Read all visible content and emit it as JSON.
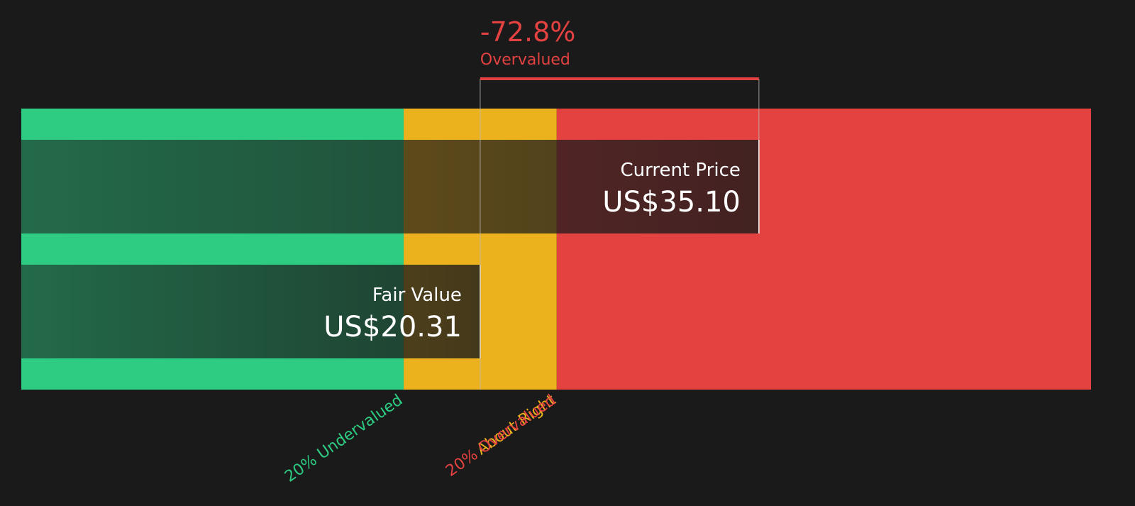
{
  "chart_data": {
    "type": "valuation",
    "xlim": [
      -4.04,
      52.72
    ],
    "zones": [
      {
        "name": "20% Undervalued",
        "color": "#2ecc82",
        "end": 16.25
      },
      {
        "name": "About Right",
        "color": "#ecb21e",
        "end": 24.37
      },
      {
        "name": "20% Overvalued",
        "color": "#e44141"
      }
    ],
    "series": [
      {
        "name": "Current Price",
        "value": 35.1,
        "value_label": "US$35.10"
      },
      {
        "name": "Fair Value",
        "value": 20.31,
        "value_label": "US$20.31"
      }
    ],
    "annotation": {
      "value": -72.8,
      "label": "-72.8%",
      "text": "Overvalued",
      "color": "#e44141"
    }
  }
}
